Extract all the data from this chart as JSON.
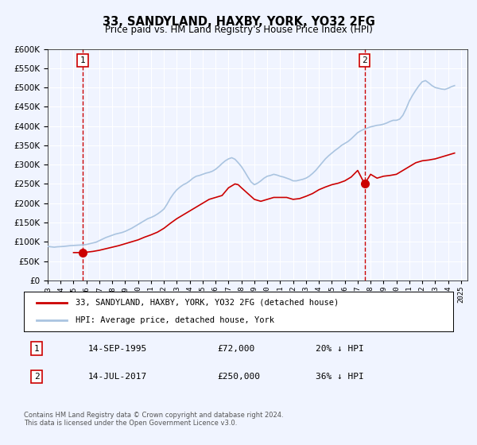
{
  "title": "33, SANDYLAND, HAXBY, YORK, YO32 2FG",
  "subtitle": "Price paid vs. HM Land Registry's House Price Index (HPI)",
  "background_color": "#f0f4ff",
  "plot_bg_color": "#f0f4ff",
  "legend_label_red": "33, SANDYLAND, HAXBY, YORK, YO32 2FG (detached house)",
  "legend_label_blue": "HPI: Average price, detached house, York",
  "footer": "Contains HM Land Registry data © Crown copyright and database right 2024.\nThis data is licensed under the Open Government Licence v3.0.",
  "sale1_label": "14-SEP-1995",
  "sale1_price": "£72,000",
  "sale1_hpi": "20% ↓ HPI",
  "sale2_label": "14-JUL-2017",
  "sale2_price": "£250,000",
  "sale2_hpi": "36% ↓ HPI",
  "ylim": [
    0,
    600000
  ],
  "xlim_start": 1993.0,
  "xlim_end": 2025.5,
  "sale1_x": 1995.71,
  "sale1_y": 72000,
  "sale2_x": 2017.54,
  "sale2_y": 250000,
  "red_line_color": "#cc0000",
  "blue_line_color": "#aac4e0",
  "dashed_line_color": "#cc0000",
  "marker_color": "#cc0000",
  "grid_color": "#ffffff",
  "hpi_data_x": [
    1993.0,
    1993.25,
    1993.5,
    1993.75,
    1994.0,
    1994.25,
    1994.5,
    1994.75,
    1995.0,
    1995.25,
    1995.5,
    1995.75,
    1996.0,
    1996.25,
    1996.5,
    1996.75,
    1997.0,
    1997.25,
    1997.5,
    1997.75,
    1998.0,
    1998.25,
    1998.5,
    1998.75,
    1999.0,
    1999.25,
    1999.5,
    1999.75,
    2000.0,
    2000.25,
    2000.5,
    2000.75,
    2001.0,
    2001.25,
    2001.5,
    2001.75,
    2002.0,
    2002.25,
    2002.5,
    2002.75,
    2003.0,
    2003.25,
    2003.5,
    2003.75,
    2004.0,
    2004.25,
    2004.5,
    2004.75,
    2005.0,
    2005.25,
    2005.5,
    2005.75,
    2006.0,
    2006.25,
    2006.5,
    2006.75,
    2007.0,
    2007.25,
    2007.5,
    2007.75,
    2008.0,
    2008.25,
    2008.5,
    2008.75,
    2009.0,
    2009.25,
    2009.5,
    2009.75,
    2010.0,
    2010.25,
    2010.5,
    2010.75,
    2011.0,
    2011.25,
    2011.5,
    2011.75,
    2012.0,
    2012.25,
    2012.5,
    2012.75,
    2013.0,
    2013.25,
    2013.5,
    2013.75,
    2014.0,
    2014.25,
    2014.5,
    2014.75,
    2015.0,
    2015.25,
    2015.5,
    2015.75,
    2016.0,
    2016.25,
    2016.5,
    2016.75,
    2017.0,
    2017.25,
    2017.5,
    2017.75,
    2018.0,
    2018.25,
    2018.5,
    2018.75,
    2019.0,
    2019.25,
    2019.5,
    2019.75,
    2020.0,
    2020.25,
    2020.5,
    2020.75,
    2021.0,
    2021.25,
    2021.5,
    2021.75,
    2022.0,
    2022.25,
    2022.5,
    2022.75,
    2023.0,
    2023.25,
    2023.5,
    2023.75,
    2024.0,
    2024.25,
    2024.5
  ],
  "hpi_data_y": [
    88000,
    87000,
    86000,
    87000,
    87500,
    88000,
    89000,
    90000,
    90500,
    91000,
    91500,
    92000,
    93000,
    95000,
    97000,
    99000,
    103000,
    107000,
    111000,
    114000,
    117000,
    120000,
    122000,
    124000,
    127000,
    131000,
    135000,
    140000,
    145000,
    150000,
    155000,
    160000,
    163000,
    167000,
    172000,
    178000,
    185000,
    198000,
    213000,
    225000,
    235000,
    242000,
    248000,
    252000,
    258000,
    265000,
    270000,
    272000,
    275000,
    278000,
    280000,
    283000,
    288000,
    295000,
    303000,
    310000,
    315000,
    318000,
    314000,
    305000,
    295000,
    282000,
    268000,
    255000,
    248000,
    252000,
    258000,
    265000,
    270000,
    272000,
    275000,
    273000,
    270000,
    268000,
    265000,
    262000,
    258000,
    258000,
    260000,
    262000,
    265000,
    270000,
    277000,
    285000,
    295000,
    305000,
    315000,
    323000,
    330000,
    337000,
    343000,
    350000,
    355000,
    360000,
    367000,
    375000,
    383000,
    388000,
    392000,
    395000,
    398000,
    400000,
    402000,
    403000,
    405000,
    408000,
    412000,
    415000,
    415000,
    418000,
    428000,
    445000,
    465000,
    480000,
    493000,
    505000,
    515000,
    518000,
    512000,
    505000,
    500000,
    498000,
    496000,
    495000,
    498000,
    502000,
    505000
  ],
  "red_data_x": [
    1995.0,
    1995.5,
    1995.71,
    1996.0,
    1996.5,
    1997.0,
    1997.5,
    1998.0,
    1998.5,
    1999.0,
    1999.5,
    2000.0,
    2000.5,
    2001.0,
    2001.5,
    2002.0,
    2002.5,
    2003.0,
    2003.5,
    2004.0,
    2004.5,
    2005.0,
    2005.5,
    2006.0,
    2006.5,
    2007.0,
    2007.5,
    2007.75,
    2008.0,
    2008.5,
    2009.0,
    2009.5,
    2010.0,
    2010.5,
    2011.0,
    2011.5,
    2012.0,
    2012.5,
    2013.0,
    2013.5,
    2014.0,
    2014.5,
    2015.0,
    2015.5,
    2016.0,
    2016.5,
    2017.0,
    2017.54,
    2018.0,
    2018.5,
    2019.0,
    2019.5,
    2020.0,
    2020.5,
    2021.0,
    2021.5,
    2022.0,
    2022.5,
    2023.0,
    2023.5,
    2024.0,
    2024.5
  ],
  "red_data_y": [
    72000,
    72000,
    72000,
    73000,
    75000,
    78000,
    82000,
    86000,
    90000,
    95000,
    100000,
    105000,
    112000,
    118000,
    125000,
    135000,
    148000,
    160000,
    170000,
    180000,
    190000,
    200000,
    210000,
    215000,
    220000,
    240000,
    250000,
    248000,
    240000,
    225000,
    210000,
    205000,
    210000,
    215000,
    215000,
    215000,
    210000,
    212000,
    218000,
    225000,
    235000,
    242000,
    248000,
    252000,
    258000,
    268000,
    285000,
    250000,
    275000,
    265000,
    270000,
    272000,
    275000,
    285000,
    295000,
    305000,
    310000,
    312000,
    315000,
    320000,
    325000,
    330000
  ]
}
